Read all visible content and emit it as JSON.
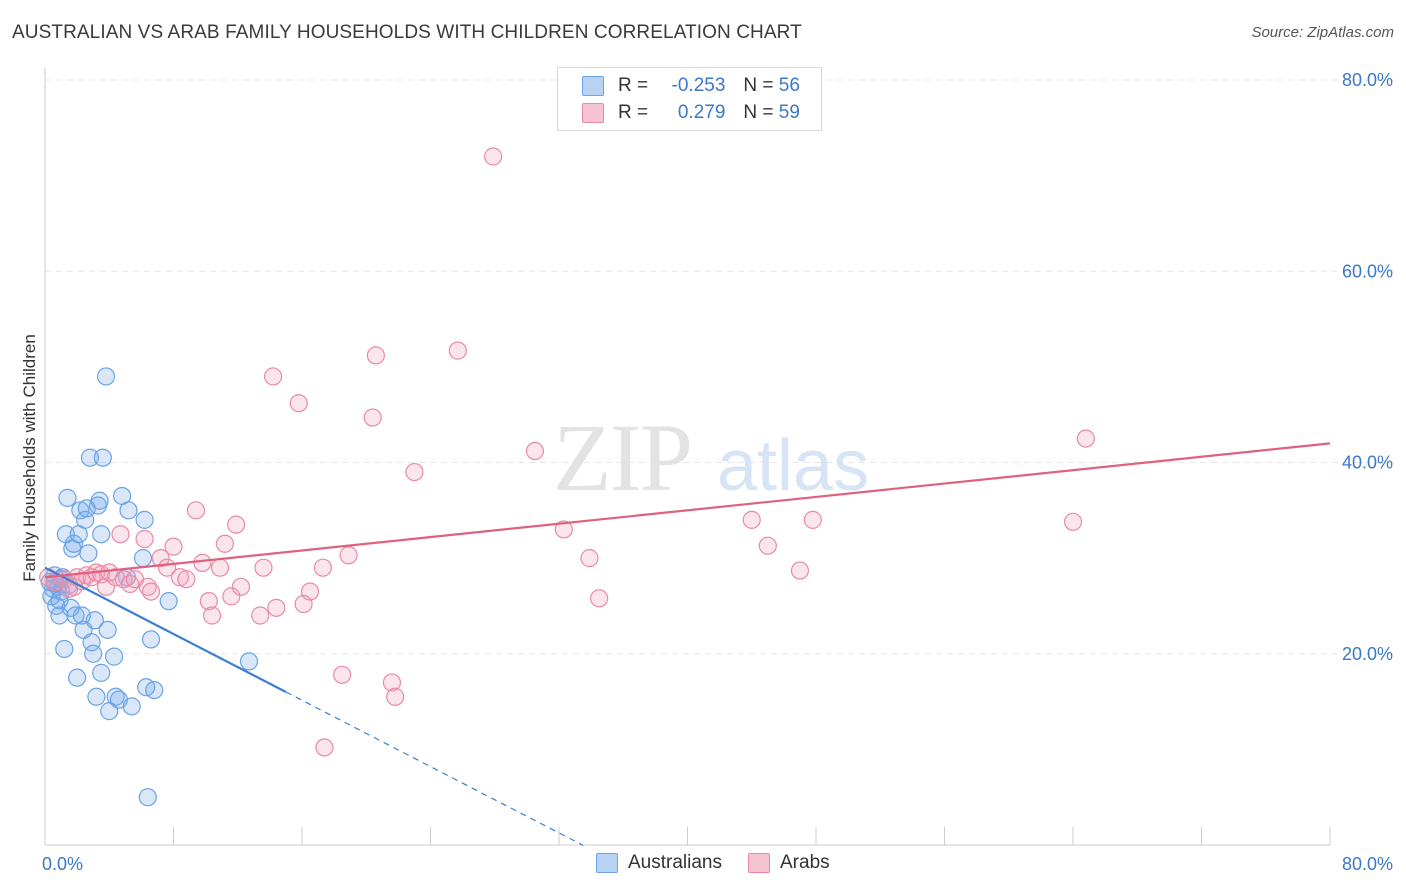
{
  "title": "AUSTRALIAN VS ARAB FAMILY HOUSEHOLDS WITH CHILDREN CORRELATION CHART",
  "source": "Source: ZipAtlas.com",
  "watermark": {
    "zip": "ZIP",
    "atlas": "atlas"
  },
  "legend": {
    "rows": [
      {
        "r_label": "R =",
        "r_value": "-0.253",
        "n_label": "N =",
        "n_value": "56",
        "color": "#6aa3e8",
        "fill": "#b9d3f4"
      },
      {
        "r_label": "R =",
        "r_value": "0.279",
        "n_label": "N =",
        "n_value": "59",
        "color": "#e88aa6",
        "fill": "#f6c3d2"
      }
    ]
  },
  "bottom_legend": [
    "Australians",
    "Arabs"
  ],
  "chart_data": {
    "type": "scatter",
    "title": "AUSTRALIAN VS ARAB FAMILY HOUSEHOLDS WITH CHILDREN CORRELATION CHART",
    "xlabel": "",
    "ylabel": "Family Households with Children",
    "xlim": [
      0,
      80
    ],
    "ylim": [
      0,
      80
    ],
    "x_tick_labels": [
      "0.0%",
      "80.0%"
    ],
    "y_tick_labels": [
      "20.0%",
      "40.0%",
      "60.0%",
      "80.0%"
    ],
    "y_ticks": [
      20,
      40,
      60,
      80
    ],
    "series": [
      {
        "name": "Australians",
        "color": "#3b7fd4",
        "fill": "rgba(120,170,235,0.28)",
        "stroke": "#6aa3e8",
        "trend": {
          "x0": 0,
          "y0": 29.0,
          "x1": 15.0,
          "y1": 16.0,
          "dash_to_x": 33.5
        },
        "points": [
          [
            0.3,
            27.5
          ],
          [
            0.5,
            26.8
          ],
          [
            0.6,
            28.2
          ],
          [
            0.7,
            25.0
          ],
          [
            0.8,
            27.0
          ],
          [
            0.9,
            24.0
          ],
          [
            1.0,
            26.5
          ],
          [
            1.1,
            28.0
          ],
          [
            1.2,
            20.5
          ],
          [
            1.3,
            32.5
          ],
          [
            1.4,
            36.3
          ],
          [
            1.5,
            27.2
          ],
          [
            1.6,
            24.8
          ],
          [
            1.7,
            31.0
          ],
          [
            1.8,
            31.5
          ],
          [
            1.9,
            24.0
          ],
          [
            2.0,
            17.5
          ],
          [
            2.1,
            32.5
          ],
          [
            2.2,
            35.0
          ],
          [
            2.3,
            24.0
          ],
          [
            2.4,
            22.5
          ],
          [
            2.5,
            34.0
          ],
          [
            2.6,
            35.2
          ],
          [
            2.7,
            30.5
          ],
          [
            2.8,
            40.5
          ],
          [
            2.9,
            21.2
          ],
          [
            3.0,
            20.0
          ],
          [
            3.1,
            23.5
          ],
          [
            3.2,
            15.5
          ],
          [
            3.3,
            35.5
          ],
          [
            3.4,
            36.0
          ],
          [
            3.5,
            18.0
          ],
          [
            3.5,
            32.5
          ],
          [
            3.6,
            40.5
          ],
          [
            3.8,
            49.0
          ],
          [
            3.9,
            22.5
          ],
          [
            4.0,
            14.0
          ],
          [
            4.3,
            19.7
          ],
          [
            4.4,
            15.5
          ],
          [
            4.6,
            15.2
          ],
          [
            4.8,
            36.5
          ],
          [
            5.1,
            28.0
          ],
          [
            5.2,
            35.0
          ],
          [
            5.4,
            14.5
          ],
          [
            6.1,
            30.0
          ],
          [
            6.2,
            34.0
          ],
          [
            6.3,
            16.5
          ],
          [
            6.4,
            5.0
          ],
          [
            6.6,
            21.5
          ],
          [
            6.8,
            16.2
          ],
          [
            7.7,
            25.5
          ],
          [
            12.7,
            19.2
          ],
          [
            0.4,
            26.0
          ],
          [
            1.0,
            27.8
          ],
          [
            0.6,
            27.4
          ],
          [
            0.9,
            25.6
          ]
        ]
      },
      {
        "name": "Arabs",
        "color": "#e0607f",
        "fill": "rgba(240,160,185,0.28)",
        "stroke": "#e88aa6",
        "trend": {
          "x0": 0,
          "y0": 28.0,
          "x1": 80,
          "y1": 42.0
        },
        "points": [
          [
            0.2,
            28.0
          ],
          [
            0.6,
            27.5
          ],
          [
            1.2,
            27.8
          ],
          [
            1.5,
            26.8
          ],
          [
            1.8,
            27.0
          ],
          [
            2.0,
            28.0
          ],
          [
            2.3,
            27.6
          ],
          [
            2.6,
            28.2
          ],
          [
            2.9,
            28.0
          ],
          [
            3.2,
            28.5
          ],
          [
            3.5,
            28.3
          ],
          [
            3.8,
            27.0
          ],
          [
            4.0,
            28.5
          ],
          [
            4.4,
            28.0
          ],
          [
            4.7,
            32.5
          ],
          [
            4.9,
            27.8
          ],
          [
            5.3,
            27.3
          ],
          [
            5.6,
            27.8
          ],
          [
            6.2,
            32.0
          ],
          [
            6.4,
            27.0
          ],
          [
            6.6,
            26.5
          ],
          [
            7.2,
            30.0
          ],
          [
            7.6,
            29.0
          ],
          [
            8.0,
            31.2
          ],
          [
            8.4,
            28.0
          ],
          [
            8.8,
            27.8
          ],
          [
            9.4,
            35.0
          ],
          [
            9.8,
            29.5
          ],
          [
            10.2,
            25.5
          ],
          [
            10.4,
            24.0
          ],
          [
            10.9,
            29.0
          ],
          [
            11.2,
            31.5
          ],
          [
            11.6,
            26.0
          ],
          [
            11.9,
            33.5
          ],
          [
            12.2,
            27.0
          ],
          [
            13.4,
            24.0
          ],
          [
            13.6,
            29.0
          ],
          [
            14.2,
            49.0
          ],
          [
            14.4,
            24.8
          ],
          [
            15.8,
            46.2
          ],
          [
            16.1,
            25.2
          ],
          [
            16.5,
            26.5
          ],
          [
            17.3,
            29.0
          ],
          [
            17.4,
            10.2
          ],
          [
            18.5,
            17.8
          ],
          [
            18.9,
            30.3
          ],
          [
            20.4,
            44.7
          ],
          [
            20.6,
            51.2
          ],
          [
            21.6,
            17.0
          ],
          [
            21.8,
            15.5
          ],
          [
            23.0,
            39.0
          ],
          [
            25.7,
            51.7
          ],
          [
            27.9,
            72.0
          ],
          [
            30.5,
            41.2
          ],
          [
            32.3,
            33.0
          ],
          [
            33.9,
            30.0
          ],
          [
            34.5,
            25.8
          ],
          [
            44.0,
            34.0
          ],
          [
            45.0,
            31.3
          ],
          [
            47.0,
            28.7
          ],
          [
            47.8,
            34.0
          ],
          [
            64.0,
            33.8
          ],
          [
            64.8,
            42.5
          ]
        ]
      }
    ]
  }
}
